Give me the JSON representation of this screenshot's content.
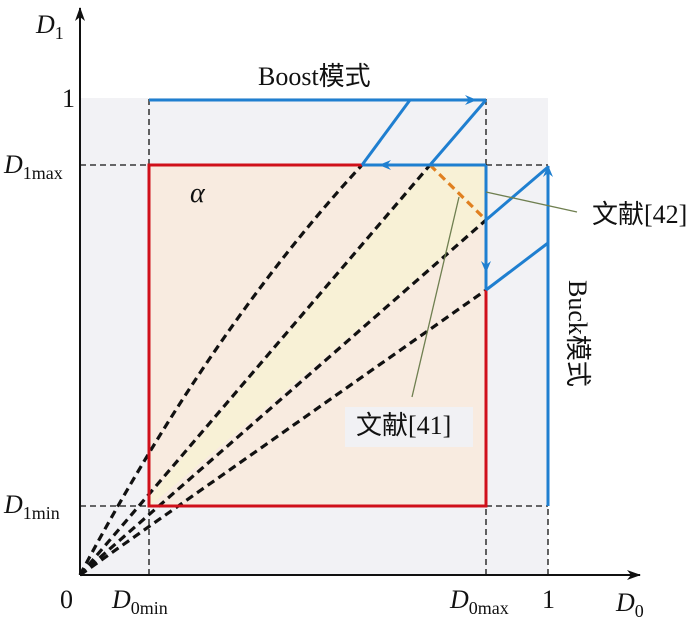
{
  "colors": {
    "region_gray": "#f2f2f5",
    "square_fill": "#f8ebe0",
    "triangle_fill": "#f8f1d6",
    "red": "#d0101a",
    "blue": "#1f7fd0",
    "orange": "#e08020",
    "leader": "#6f7f50"
  },
  "axes": {
    "x_label": "D",
    "x_sub": "0",
    "y_label": "D",
    "y_sub": "1",
    "origin": "0",
    "x_ticks": [
      {
        "main": "D",
        "sub": "0min"
      },
      {
        "main": "D",
        "sub": "0max"
      },
      {
        "main": "1",
        "sub": ""
      }
    ],
    "y_ticks": [
      {
        "main": "1",
        "sub": ""
      },
      {
        "main": "D",
        "sub": "1max"
      },
      {
        "main": "D",
        "sub": "1min"
      }
    ]
  },
  "labels": {
    "boost": "Boost模式",
    "buck": "Buck模式",
    "alpha": "α",
    "ref42": "文献[42]",
    "ref41": "文献[41]"
  }
}
